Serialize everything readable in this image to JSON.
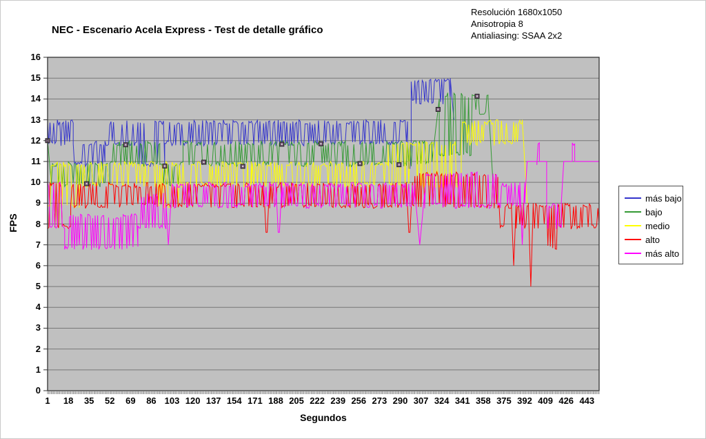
{
  "chart_data": {
    "type": "line",
    "title": "NEC - Escenario Acela Express - Test de detalle gráfico",
    "annotations": [
      "Resolución 1680x1050",
      "Anisotropia 8",
      "Antialiasing: SSAA 2x2"
    ],
    "xlabel": "Segundos",
    "ylabel": "FPS",
    "ylim": [
      0,
      16
    ],
    "y_tick_step": 1,
    "x_range": [
      1,
      453
    ],
    "x_ticks": [
      1,
      18,
      35,
      52,
      69,
      86,
      103,
      120,
      137,
      154,
      171,
      188,
      205,
      222,
      239,
      256,
      273,
      290,
      307,
      324,
      341,
      358,
      375,
      392,
      409,
      426,
      443
    ],
    "grid": true,
    "plot_bg": "#c0c0c0",
    "grid_color": "#777777",
    "axis_color": "#333333",
    "legend_position": "right",
    "segment_format": "[start_sec, end_sec, low, high, mode] ; mode: osc=jitter between low/high (default), ramp=linear low->high, vee=high at ends dipping to low at middle",
    "series": [
      {
        "name": "más bajo",
        "color": "#3333cc",
        "segments": [
          [
            1,
            22,
            12,
            13
          ],
          [
            22,
            48,
            11,
            12
          ],
          [
            48,
            75,
            12,
            13
          ],
          [
            75,
            97,
            11,
            13
          ],
          [
            97,
            296,
            12,
            13
          ],
          [
            296,
            299,
            10,
            12,
            "vee"
          ],
          [
            299,
            331,
            14,
            15
          ],
          [
            331,
            334,
            15,
            13,
            "ramp"
          ]
        ]
      },
      {
        "name": "bajo",
        "color": "#339933",
        "segments": [
          [
            1,
            4,
            12,
            10,
            "ramp"
          ],
          [
            4,
            52,
            10,
            11
          ],
          [
            52,
            93,
            11,
            12
          ],
          [
            93,
            112,
            10,
            11
          ],
          [
            112,
            316,
            11,
            12
          ],
          [
            316,
            322,
            11,
            14,
            "ramp"
          ],
          [
            322,
            350,
            11.5,
            14.3
          ],
          [
            350,
            362,
            13.5,
            14.3
          ],
          [
            362,
            366,
            14,
            10,
            "ramp"
          ]
        ]
      },
      {
        "name": "medio",
        "color": "#ffff00",
        "segments": [
          [
            1,
            28,
            9,
            11
          ],
          [
            28,
            91,
            10,
            11
          ],
          [
            91,
            109,
            9,
            11
          ],
          [
            109,
            165,
            10,
            11
          ],
          [
            165,
            168,
            8,
            11,
            "vee"
          ],
          [
            168,
            280,
            10,
            11
          ],
          [
            280,
            340,
            10,
            12
          ],
          [
            340,
            390,
            12,
            13
          ],
          [
            390,
            394,
            13,
            9,
            "ramp"
          ]
        ]
      },
      {
        "name": "alto",
        "color": "#ff0000",
        "segments": [
          [
            1,
            20,
            8,
            10
          ],
          [
            20,
            178,
            9,
            10
          ],
          [
            178,
            183,
            7,
            10,
            "vee"
          ],
          [
            183,
            295,
            9,
            10
          ],
          [
            295,
            300,
            7,
            10,
            "vee"
          ],
          [
            300,
            370,
            9,
            10.5
          ],
          [
            370,
            381,
            8,
            9
          ],
          [
            381,
            385,
            6,
            9,
            "vee"
          ],
          [
            385,
            395,
            8,
            9
          ],
          [
            395,
            399,
            5,
            9,
            "vee"
          ],
          [
            399,
            410,
            8,
            9
          ],
          [
            410,
            420,
            7,
            9
          ],
          [
            420,
            453,
            8,
            9
          ]
        ]
      },
      {
        "name": "más alto",
        "color": "#ff00ff",
        "segments": [
          [
            1,
            15,
            8,
            10
          ],
          [
            15,
            75,
            7,
            8.5
          ],
          [
            75,
            98,
            8,
            9.5
          ],
          [
            98,
            102,
            7,
            9,
            "vee"
          ],
          [
            102,
            188,
            9,
            10
          ],
          [
            188,
            193,
            7,
            10,
            "vee"
          ],
          [
            193,
            302,
            9,
            10
          ],
          [
            302,
            310,
            7,
            9.5,
            "vee"
          ],
          [
            310,
            370,
            9,
            10.5
          ],
          [
            370,
            388,
            9,
            10
          ],
          [
            388,
            392,
            7,
            10,
            "vee"
          ],
          [
            392,
            394,
            9,
            11,
            "ramp"
          ],
          [
            394,
            402,
            11,
            11
          ],
          [
            402,
            404,
            11,
            12
          ],
          [
            404,
            410,
            11,
            11
          ],
          [
            410,
            422,
            8,
            9
          ],
          [
            422,
            424,
            9,
            11,
            "ramp"
          ],
          [
            424,
            431,
            11,
            11
          ],
          [
            431,
            433,
            11,
            12
          ],
          [
            433,
            453,
            11,
            11
          ]
        ]
      }
    ],
    "point_markers": {
      "on_series": "bajo",
      "start_second": 1,
      "interval_seconds": 32,
      "fill": "#7a5a7a",
      "stroke": "#222222"
    }
  }
}
